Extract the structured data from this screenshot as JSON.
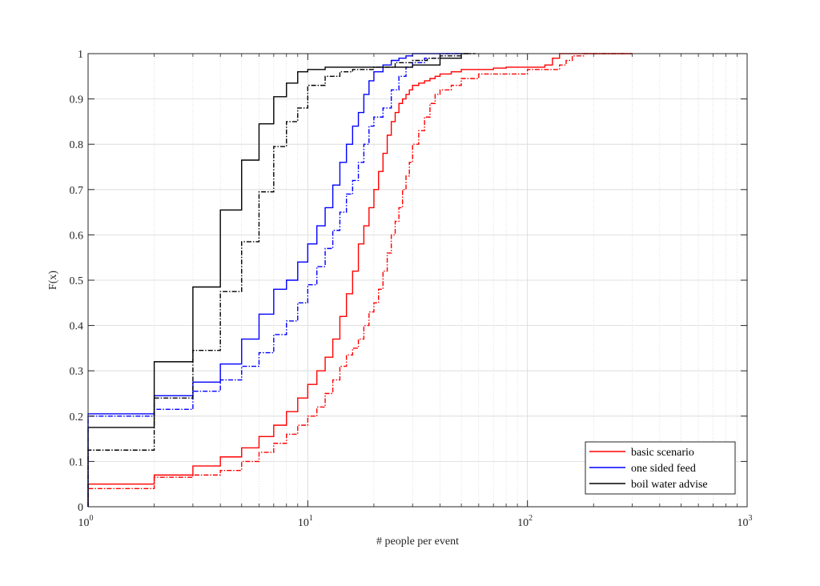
{
  "chart_data": {
    "type": "line",
    "subtype": "empirical-cdf-step",
    "xlabel": "# people per event",
    "ylabel": "F(x)",
    "xscale": "log",
    "xlim": [
      1,
      1000
    ],
    "ylim": [
      0,
      1
    ],
    "xticks": [
      {
        "value": 1,
        "label_base": "10",
        "label_exp": "0"
      },
      {
        "value": 10,
        "label_base": "10",
        "label_exp": "1"
      },
      {
        "value": 100,
        "label_base": "10",
        "label_exp": "2"
      },
      {
        "value": 1000,
        "label_base": "10",
        "label_exp": "3"
      }
    ],
    "yticks": [
      {
        "value": 0,
        "label": "0"
      },
      {
        "value": 0.1,
        "label": "0.1"
      },
      {
        "value": 0.2,
        "label": "0.2"
      },
      {
        "value": 0.3,
        "label": "0.3"
      },
      {
        "value": 0.4,
        "label": "0.4"
      },
      {
        "value": 0.5,
        "label": "0.5"
      },
      {
        "value": 0.6,
        "label": "0.6"
      },
      {
        "value": 0.7,
        "label": "0.7"
      },
      {
        "value": 0.8,
        "label": "0.8"
      },
      {
        "value": 0.9,
        "label": "0.9"
      },
      {
        "value": 1,
        "label": "1"
      }
    ],
    "grid": true,
    "minor_grid": true,
    "legend_position": "bottom-right",
    "legend": [
      {
        "label": "basic scenario",
        "color": "#ff0000"
      },
      {
        "label": "one sided feed",
        "color": "#0000ff"
      },
      {
        "label": "boil water advise",
        "color": "#000000"
      }
    ],
    "series": [
      {
        "key": "basic-solid",
        "color": "#ff0000",
        "style": "solid",
        "x": [
          1,
          2,
          3,
          4,
          5,
          6,
          7,
          8,
          9,
          10,
          11,
          12,
          13,
          14,
          15,
          16,
          17,
          18,
          19,
          20,
          21,
          22,
          23,
          24,
          25,
          26,
          27,
          28,
          29,
          30,
          32,
          34,
          36,
          38,
          40,
          45,
          50,
          60,
          70,
          80,
          100,
          120,
          130,
          140,
          160,
          200,
          300
        ],
        "y": [
          0.05,
          0.07,
          0.09,
          0.11,
          0.13,
          0.155,
          0.18,
          0.21,
          0.24,
          0.27,
          0.3,
          0.33,
          0.37,
          0.42,
          0.47,
          0.52,
          0.58,
          0.62,
          0.66,
          0.7,
          0.74,
          0.78,
          0.82,
          0.85,
          0.87,
          0.89,
          0.9,
          0.91,
          0.92,
          0.93,
          0.935,
          0.94,
          0.945,
          0.95,
          0.955,
          0.96,
          0.965,
          0.965,
          0.968,
          0.97,
          0.97,
          0.975,
          0.99,
          1.0,
          1.0,
          1.0,
          1.0
        ]
      },
      {
        "key": "basic-dashed",
        "color": "#ff0000",
        "style": "dashdot",
        "x": [
          1,
          2,
          3,
          4,
          5,
          6,
          7,
          8,
          9,
          10,
          11,
          12,
          13,
          14,
          15,
          16,
          17,
          18,
          19,
          20,
          21,
          22,
          23,
          24,
          25,
          26,
          27,
          28,
          29,
          30,
          32,
          34,
          36,
          38,
          40,
          45,
          50,
          60,
          100,
          140,
          150,
          160,
          180,
          200,
          300
        ],
        "y": [
          0.04,
          0.065,
          0.07,
          0.08,
          0.1,
          0.12,
          0.14,
          0.16,
          0.18,
          0.2,
          0.22,
          0.25,
          0.28,
          0.31,
          0.335,
          0.35,
          0.37,
          0.4,
          0.43,
          0.45,
          0.48,
          0.52,
          0.56,
          0.6,
          0.63,
          0.66,
          0.7,
          0.73,
          0.76,
          0.8,
          0.83,
          0.86,
          0.89,
          0.91,
          0.92,
          0.93,
          0.945,
          0.955,
          0.965,
          0.975,
          0.985,
          0.995,
          1.0,
          1.0,
          1.0
        ]
      },
      {
        "key": "one-sided-solid",
        "color": "#0000ff",
        "style": "solid",
        "x": [
          1,
          2,
          3,
          4,
          5,
          6,
          7,
          8,
          9,
          10,
          11,
          12,
          13,
          14,
          15,
          16,
          17,
          18,
          19,
          20,
          22,
          24,
          26,
          28,
          30,
          40,
          50
        ],
        "y": [
          0.205,
          0.245,
          0.275,
          0.315,
          0.37,
          0.425,
          0.48,
          0.5,
          0.54,
          0.58,
          0.62,
          0.66,
          0.71,
          0.76,
          0.8,
          0.84,
          0.87,
          0.91,
          0.94,
          0.96,
          0.975,
          0.985,
          0.99,
          0.995,
          1.0,
          1.0,
          1.0
        ],
        "x_end": 50
      },
      {
        "key": "one-sided-dashed",
        "color": "#0000ff",
        "style": "dashdot",
        "x": [
          1,
          2,
          3,
          4,
          5,
          6,
          7,
          8,
          9,
          10,
          11,
          12,
          13,
          14,
          15,
          16,
          17,
          18,
          19,
          20,
          22,
          24,
          26,
          28,
          30,
          34,
          40,
          50
        ],
        "y": [
          0.2,
          0.215,
          0.255,
          0.28,
          0.31,
          0.34,
          0.38,
          0.41,
          0.45,
          0.49,
          0.53,
          0.57,
          0.61,
          0.65,
          0.69,
          0.72,
          0.76,
          0.8,
          0.84,
          0.86,
          0.88,
          0.92,
          0.95,
          0.97,
          0.98,
          0.99,
          1.0,
          1.0
        ],
        "x_end": 50
      },
      {
        "key": "boil-solid",
        "color": "#000000",
        "style": "solid",
        "x": [
          1,
          2,
          3,
          4,
          5,
          6,
          7,
          8,
          9,
          10,
          12,
          14,
          16,
          20,
          30,
          40,
          50
        ],
        "y": [
          0.175,
          0.32,
          0.485,
          0.655,
          0.765,
          0.845,
          0.905,
          0.935,
          0.96,
          0.965,
          0.97,
          0.97,
          0.97,
          0.97,
          0.975,
          0.99,
          1.0
        ],
        "x_end": 55
      },
      {
        "key": "boil-dashed",
        "color": "#000000",
        "style": "dashdot",
        "x": [
          1,
          2,
          3,
          4,
          5,
          6,
          7,
          8,
          9,
          10,
          12,
          14,
          16,
          20,
          25,
          30,
          35,
          40,
          50
        ],
        "y": [
          0.125,
          0.24,
          0.345,
          0.475,
          0.585,
          0.695,
          0.795,
          0.85,
          0.88,
          0.93,
          0.95,
          0.96,
          0.965,
          0.97,
          0.98,
          0.985,
          0.99,
          0.995,
          1.0
        ],
        "x_end": 58
      }
    ]
  }
}
